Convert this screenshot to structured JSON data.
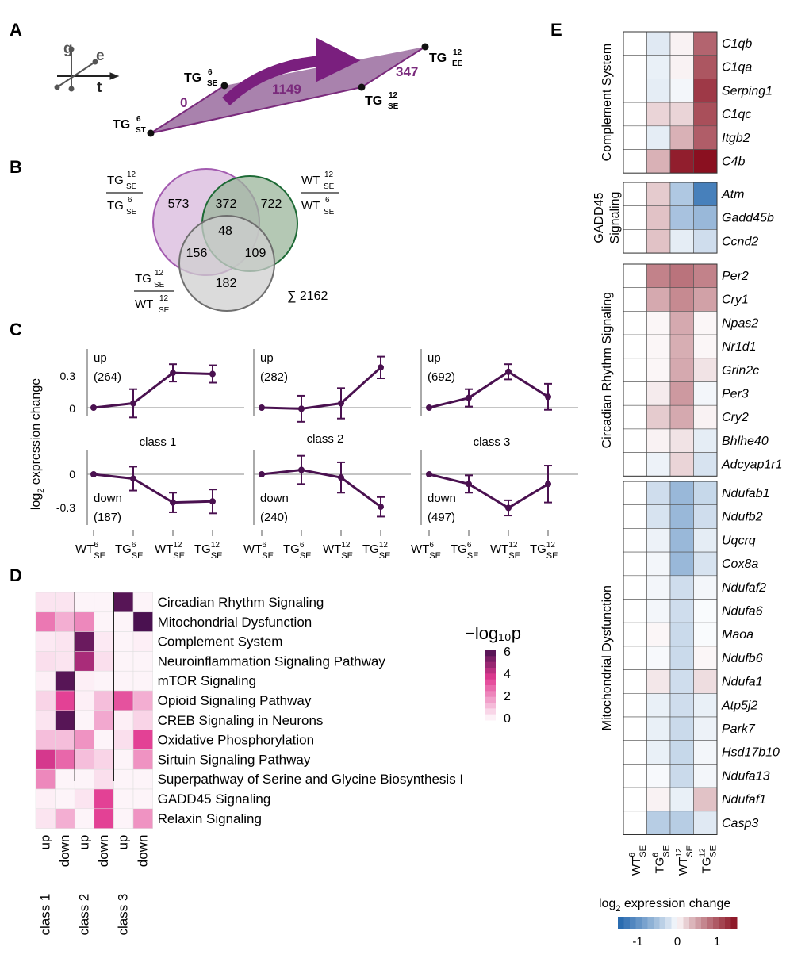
{
  "colors": {
    "purple_dark": "#4a1150",
    "purple_mid": "#7a2a7c",
    "purple_band": "#a982ad",
    "venn_purple_stroke": "#a35bb0",
    "venn_purple_fill": "#d8b8dc",
    "venn_green_stroke": "#1d6a35",
    "venn_green_fill": "#9bb59b",
    "venn_gray_stroke": "#6f6f6f",
    "venn_gray_fill": "#cfcfcf",
    "heat_max": "#4a1150",
    "heat_mid": "#e23c92",
    "heat_min": "#ffffff",
    "div_neg": "#2165ad",
    "div_pos": "#8a1020"
  },
  "panel_labels": {
    "a": "A",
    "b": "B",
    "c": "C",
    "d": "D",
    "e": "E"
  },
  "panel_a": {
    "axes": {
      "g": "g",
      "e": "e",
      "t": "t"
    },
    "points": [
      {
        "base": "TG",
        "sub": "ST",
        "sup": "6"
      },
      {
        "base": "TG",
        "sub": "SE",
        "sup": "6"
      },
      {
        "base": "TG",
        "sub": "SE",
        "sup": "12"
      },
      {
        "base": "TG",
        "sub": "EE",
        "sup": "12"
      }
    ],
    "counts": {
      "left": "0",
      "middle": "1149",
      "right": "347"
    }
  },
  "panel_b": {
    "labels": [
      {
        "num_base": "TG",
        "num_sup": "12",
        "num_sub": "SE",
        "den_base": "TG",
        "den_sup": "6",
        "den_sub": "SE"
      },
      {
        "num_base": "WT",
        "num_sup": "12",
        "num_sub": "SE",
        "den_base": "WT",
        "den_sup": "6",
        "den_sub": "SE"
      },
      {
        "num_base": "TG",
        "num_sup": "12",
        "num_sub": "SE",
        "den_base": "WT",
        "den_sup": "12",
        "den_sub": "SE"
      }
    ],
    "regions": {
      "a_only": "573",
      "b_only": "722",
      "c_only": "182",
      "ab": "372",
      "ac": "156",
      "bc": "109",
      "abc": "48"
    },
    "total": "∑ 2162"
  },
  "panel_c": {
    "ylabel_main": "log",
    "ylabel_sub": "2",
    "ylabel_rest": " expression change",
    "xticks": [
      {
        "base": "WT",
        "sup": "6",
        "sub": "SE"
      },
      {
        "base": "TG",
        "sup": "6",
        "sub": "SE"
      },
      {
        "base": "WT",
        "sup": "12",
        "sub": "SE"
      },
      {
        "base": "TG",
        "sup": "12",
        "sub": "SE"
      }
    ],
    "yticks_up": [
      "0.3",
      "0"
    ],
    "yticks_down": [
      "0",
      "-0.3"
    ],
    "classes": [
      "class 1",
      "class 2",
      "class 3"
    ]
  },
  "chart_data": [
    {
      "type": "line",
      "title": "Panel C: mean log2 expression change per class",
      "x": [
        "WT6 SE",
        "TG6 SE",
        "WT12 SE",
        "TG12 SE"
      ],
      "ylabel": "log2 expression change",
      "ylim": [
        -0.45,
        0.45
      ],
      "series": [
        {
          "name": "class 1 up",
          "label": "up",
          "count": "(264)",
          "values": [
            0,
            0.04,
            0.32,
            0.31
          ],
          "err": [
            0,
            0.13,
            0.08,
            0.08
          ]
        },
        {
          "name": "class 1 down",
          "label": "down",
          "count": "(187)",
          "values": [
            0,
            -0.04,
            -0.26,
            -0.25
          ],
          "err": [
            0,
            0.11,
            0.09,
            0.11
          ]
        },
        {
          "name": "class 2 up",
          "label": "up",
          "count": "(282)",
          "values": [
            0,
            -0.01,
            0.04,
            0.37
          ],
          "err": [
            0,
            0.12,
            0.14,
            0.1
          ]
        },
        {
          "name": "class 2 down",
          "label": "down",
          "count": "(240)",
          "values": [
            0,
            0.04,
            -0.03,
            -0.3
          ],
          "err": [
            0,
            0.13,
            0.14,
            0.09
          ]
        },
        {
          "name": "class 3 up",
          "label": "up",
          "count": "(692)",
          "values": [
            0,
            0.09,
            0.33,
            0.1
          ],
          "err": [
            0,
            0.08,
            0.07,
            0.12
          ]
        },
        {
          "name": "class 3 down",
          "label": "down",
          "count": "(497)",
          "values": [
            0,
            -0.09,
            -0.31,
            -0.09
          ],
          "err": [
            0,
            0.08,
            0.07,
            0.17
          ]
        }
      ]
    },
    {
      "type": "heatmap",
      "title": "Panel D: pathway enrichment (-log10 p)",
      "columns": [
        "class 1 up",
        "class 1 down",
        "class 2 up",
        "class 2 down",
        "class 3 up",
        "class 3 down"
      ],
      "rows": [
        "Circadian Rhythm Signaling",
        "Mitochondrial Dysfunction",
        "Complement System",
        "Neuroinflammation Signaling Pathway",
        "mTOR Signaling",
        "Opioid Signaling Pathway",
        "CREB Signaling in Neurons",
        "Oxidative Phosphorylation",
        "Sirtuin Signaling Pathway",
        "Superpathway of Serine and Glycine Biosynthesis I",
        "GADD45 Signaling",
        "Relaxin Signaling"
      ],
      "values": [
        [
          0.5,
          0.5,
          0.2,
          0.2,
          5.8,
          0.2
        ],
        [
          2.5,
          1.5,
          2.2,
          0.2,
          0.2,
          6.0
        ],
        [
          0.4,
          0.5,
          5.5,
          0.4,
          0.2,
          0.3
        ],
        [
          0.6,
          0.5,
          4.5,
          0.6,
          0.2,
          0.2
        ],
        [
          0.3,
          5.8,
          0.3,
          0.2,
          0.2,
          0.2
        ],
        [
          0.8,
          3.5,
          0.3,
          1.2,
          3.2,
          1.5
        ],
        [
          0.5,
          5.8,
          0.2,
          1.6,
          0.3,
          0.8
        ],
        [
          1.2,
          1.2,
          2.0,
          0.2,
          0.6,
          3.5
        ],
        [
          3.8,
          2.8,
          1.2,
          0.8,
          0.2,
          2.0
        ],
        [
          2.2,
          0.2,
          0.2,
          0.6,
          0.2,
          0.2
        ],
        [
          0.3,
          0.2,
          0.5,
          3.5,
          0.2,
          0.2
        ],
        [
          0.5,
          1.5,
          0.2,
          3.5,
          0.2,
          2.0
        ]
      ],
      "vmin": 0,
      "vmax": 6,
      "legend_title": "−log₁₀p",
      "legend_ticks": [
        "6",
        "4",
        "2",
        "0"
      ],
      "xlabels_top": [
        "up",
        "down",
        "up",
        "down",
        "up",
        "down"
      ],
      "xlabels_group": [
        "class 1",
        "class 2",
        "class 3"
      ]
    },
    {
      "type": "heatmap",
      "title": "Panel E: log2 expression change of pathway genes",
      "columns": [
        "WT6 SE",
        "TG6 SE",
        "WT12 SE",
        "TG12 SE"
      ],
      "vmin": -1.5,
      "vmax": 1.5,
      "legend_title_main": "log",
      "legend_title_sub": "2",
      "legend_title_rest": " expression change",
      "legend_ticks": [
        "-1",
        "0",
        "1"
      ],
      "groups": [
        {
          "name": "Complement System",
          "name_lines": [
            "Complement System"
          ],
          "genes": [
            "C1qb",
            "C1qa",
            "Serping1",
            "C1qc",
            "Itgb2",
            "C4b"
          ],
          "values": [
            [
              0,
              -0.15,
              0.05,
              0.9
            ],
            [
              0,
              -0.1,
              0.05,
              1.0
            ],
            [
              0,
              -0.12,
              -0.05,
              1.2
            ],
            [
              0,
              0.2,
              0.2,
              1.05
            ],
            [
              0,
              -0.12,
              0.4,
              0.95
            ],
            [
              0,
              0.4,
              1.4,
              1.55
            ]
          ]
        },
        {
          "name": "GADD45 Signaling",
          "name_lines": [
            "GADD45",
            "Signaling"
          ],
          "genes": [
            "Atm",
            "Gadd45b",
            "Ccnd2"
          ],
          "values": [
            [
              0,
              0.25,
              -0.45,
              -1.2
            ],
            [
              0,
              0.3,
              -0.5,
              -0.6
            ],
            [
              0,
              0.3,
              -0.12,
              -0.25
            ]
          ]
        },
        {
          "name": "Circadian Rhythm Signaling",
          "name_lines": [
            "Circadian Rhythm Signaling"
          ],
          "genes": [
            "Per2",
            "Cry1",
            "Npas2",
            "Nr1d1",
            "Grin2c",
            "Per3",
            "Cry2",
            "Bhlhe40",
            "Adcyap1r1"
          ],
          "values": [
            [
              0,
              0.7,
              0.8,
              0.7
            ],
            [
              0,
              0.45,
              0.65,
              0.5
            ],
            [
              0,
              0.03,
              0.45,
              0.03
            ],
            [
              0,
              0.03,
              0.42,
              0.03
            ],
            [
              0,
              0.03,
              0.45,
              0.12
            ],
            [
              0,
              0.08,
              0.55,
              -0.05
            ],
            [
              0,
              0.25,
              0.45,
              0.05
            ],
            [
              0,
              0.05,
              0.12,
              -0.12
            ],
            [
              0,
              -0.08,
              0.2,
              -0.2
            ]
          ]
        },
        {
          "name": "Mitochondrial Dysfunction",
          "name_lines": [
            "Mitochondrial Dysfunction"
          ],
          "genes": [
            "Ndufab1",
            "Ndufb2",
            "Uqcrq",
            "Cox8a",
            "Ndufaf2",
            "Ndufa6",
            "Maoa",
            "Ndufb6",
            "Ndufa1",
            "Atp5j2",
            "Park7",
            "Hsd17b10",
            "Ndufa13",
            "Ndufaf1",
            "Casp3"
          ],
          "values": [
            [
              0,
              -0.25,
              -0.6,
              -0.3
            ],
            [
              0,
              -0.2,
              -0.6,
              -0.25
            ],
            [
              0,
              -0.08,
              -0.6,
              -0.12
            ],
            [
              0,
              -0.05,
              -0.6,
              -0.2
            ],
            [
              0,
              -0.05,
              -0.25,
              -0.05
            ],
            [
              0,
              -0.05,
              -0.25,
              -0.02
            ],
            [
              0,
              0.03,
              -0.28,
              -0.02
            ],
            [
              0,
              -0.03,
              -0.28,
              0.03
            ],
            [
              0,
              0.1,
              -0.25,
              0.15
            ],
            [
              0,
              -0.1,
              -0.25,
              -0.1
            ],
            [
              0,
              -0.1,
              -0.28,
              -0.08
            ],
            [
              0,
              -0.1,
              -0.3,
              -0.05
            ],
            [
              0,
              -0.03,
              -0.28,
              -0.05
            ],
            [
              0,
              0.05,
              -0.1,
              0.3
            ],
            [
              0,
              -0.4,
              -0.4,
              -0.15
            ]
          ]
        }
      ]
    }
  ]
}
